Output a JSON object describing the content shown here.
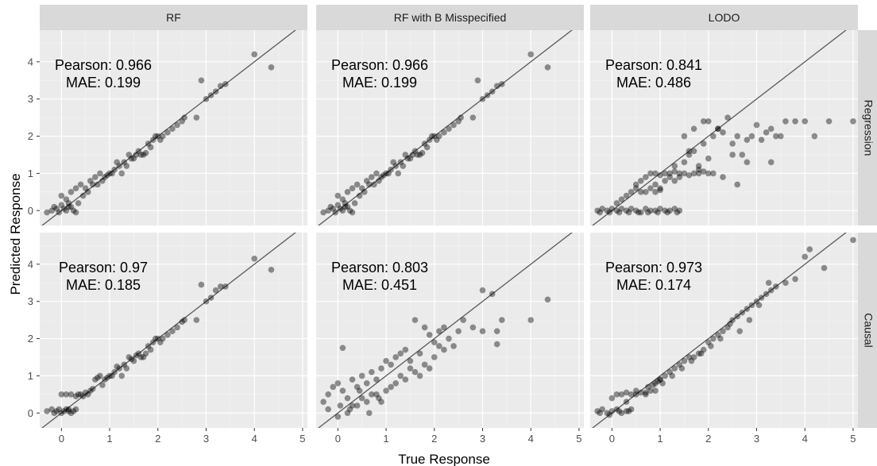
{
  "chart_data": {
    "type": "scatter",
    "xlabel": "True Response",
    "ylabel": "Predicted Response",
    "xlim": [
      -0.45,
      5.1
    ],
    "ylim": [
      -0.4,
      4.85
    ],
    "x_ticks": [
      0,
      1,
      2,
      3,
      4,
      5
    ],
    "y_ticks": [
      0,
      1,
      2,
      3,
      4
    ],
    "grid": true,
    "reference_line": "y = x",
    "columns": [
      "RF",
      "RF with B Misspecified",
      "LODO"
    ],
    "rows": [
      "Regression",
      "Causal"
    ],
    "panels": [
      {
        "column": "RF",
        "row": "Regression",
        "annotation": {
          "pearson": "Pearson: 0.966",
          "mae": "MAE: 0.199"
        },
        "x": [
          -0.3,
          -0.2,
          -0.15,
          -0.1,
          -0.05,
          0.0,
          0.05,
          0.1,
          0.15,
          0.2,
          0.25,
          0.3,
          0.0,
          0.1,
          0.2,
          0.3,
          0.4,
          0.5,
          0.6,
          0.7,
          0.8,
          0.9,
          1.0,
          1.1,
          1.2,
          1.3,
          1.4,
          1.5,
          1.6,
          1.7,
          1.8,
          1.9,
          2.0,
          2.1,
          2.2,
          2.4,
          2.5,
          2.8,
          3.0,
          3.2,
          3.3,
          3.4,
          4.0,
          4.35,
          0.35,
          0.55,
          0.75,
          0.95,
          1.25,
          1.45,
          1.65,
          1.85,
          2.05,
          2.3,
          2.55,
          2.9,
          3.1,
          0.15,
          0.45,
          0.65,
          0.85,
          1.05,
          1.15,
          1.35,
          1.55,
          1.75,
          1.95
        ],
        "y": [
          -0.05,
          0.0,
          0.1,
          0.05,
          -0.05,
          0.15,
          0.05,
          0.0,
          0.2,
          0.1,
          0.0,
          -0.05,
          0.4,
          0.3,
          0.5,
          0.6,
          0.7,
          0.6,
          0.8,
          0.9,
          1.0,
          0.9,
          1.0,
          1.1,
          1.2,
          1.3,
          1.5,
          1.4,
          1.6,
          1.5,
          1.8,
          1.9,
          2.0,
          2.0,
          2.1,
          2.3,
          2.4,
          2.5,
          3.0,
          3.2,
          3.35,
          3.4,
          4.2,
          3.85,
          0.2,
          0.5,
          0.7,
          0.95,
          1.0,
          1.4,
          1.5,
          1.7,
          1.9,
          2.2,
          2.5,
          3.5,
          3.1,
          0.1,
          0.4,
          0.7,
          0.8,
          1.0,
          1.3,
          1.2,
          1.5,
          1.55,
          2.0
        ]
      },
      {
        "column": "RF with B Misspecified",
        "row": "Regression",
        "annotation": {
          "pearson": "Pearson: 0.966",
          "mae": "MAE: 0.199"
        },
        "x": [
          -0.3,
          -0.2,
          -0.15,
          -0.1,
          -0.05,
          0.0,
          0.05,
          0.1,
          0.15,
          0.2,
          0.25,
          0.3,
          0.0,
          0.1,
          0.2,
          0.3,
          0.4,
          0.5,
          0.6,
          0.7,
          0.8,
          0.9,
          1.0,
          1.1,
          1.2,
          1.3,
          1.4,
          1.5,
          1.6,
          1.7,
          1.8,
          1.9,
          2.0,
          2.1,
          2.2,
          2.4,
          2.5,
          2.8,
          3.0,
          3.2,
          3.3,
          3.4,
          4.0,
          4.35,
          0.35,
          0.55,
          0.75,
          0.95,
          1.25,
          1.45,
          1.65,
          1.85,
          2.05,
          2.3,
          2.55,
          2.9,
          3.1,
          0.15,
          0.45,
          0.65,
          0.85,
          1.05,
          1.15,
          1.35,
          1.55,
          1.75,
          1.95
        ],
        "y": [
          -0.05,
          0.0,
          0.1,
          0.05,
          -0.05,
          0.15,
          0.05,
          0.0,
          0.2,
          0.1,
          0.0,
          -0.05,
          0.4,
          0.3,
          0.5,
          0.6,
          0.7,
          0.6,
          0.8,
          0.9,
          1.0,
          0.9,
          1.0,
          1.1,
          1.2,
          1.3,
          1.5,
          1.4,
          1.6,
          1.5,
          1.8,
          1.9,
          2.0,
          2.0,
          2.1,
          2.3,
          2.4,
          2.5,
          3.0,
          3.2,
          3.35,
          3.4,
          4.2,
          3.85,
          0.2,
          0.5,
          0.7,
          0.95,
          1.0,
          1.4,
          1.5,
          1.7,
          1.9,
          2.2,
          2.5,
          3.5,
          3.1,
          0.1,
          0.4,
          0.7,
          0.8,
          1.0,
          1.3,
          1.2,
          1.5,
          1.55,
          2.0
        ]
      },
      {
        "column": "LODO",
        "row": "Regression",
        "annotation": {
          "pearson": "Pearson: 0.841",
          "mae": "MAE: 0.486"
        },
        "x": [
          -0.3,
          -0.2,
          -0.1,
          0.0,
          0.1,
          0.2,
          0.3,
          0.4,
          0.5,
          0.6,
          0.7,
          0.8,
          0.9,
          1.0,
          1.1,
          1.2,
          1.3,
          1.4,
          -0.25,
          -0.05,
          0.15,
          0.35,
          0.55,
          0.75,
          0.95,
          1.15,
          1.35,
          0.1,
          0.2,
          0.3,
          0.4,
          0.5,
          0.6,
          0.7,
          0.8,
          0.9,
          1.0,
          0.5,
          0.6,
          0.7,
          0.8,
          0.9,
          1.0,
          1.1,
          1.2,
          1.3,
          1.4,
          1.5,
          1.6,
          1.7,
          1.8,
          1.9,
          2.0,
          2.1,
          0.9,
          1.0,
          1.1,
          1.2,
          1.3,
          1.4,
          1.5,
          1.6,
          1.7,
          1.8,
          1.9,
          2.0,
          1.5,
          1.7,
          1.9,
          2.1,
          2.3,
          2.5,
          2.7,
          2.9,
          3.1,
          3.3,
          3.5,
          2.0,
          2.2,
          2.4,
          2.6,
          2.8,
          3.0,
          3.2,
          3.4,
          3.6,
          3.8,
          4.0,
          4.2,
          4.5,
          5.0,
          1.3,
          1.6,
          2.2,
          2.5,
          2.8,
          3.3,
          1.8,
          2.3,
          2.6
        ],
        "y": [
          0.0,
          0.05,
          0.0,
          0.05,
          0.0,
          0.05,
          0.0,
          0.05,
          0.0,
          -0.05,
          0.05,
          0.0,
          0.0,
          0.05,
          0.0,
          0.0,
          0.05,
          0.0,
          -0.05,
          -0.05,
          -0.05,
          -0.05,
          -0.05,
          -0.05,
          -0.05,
          -0.05,
          -0.05,
          0.2,
          0.3,
          0.4,
          0.5,
          0.6,
          0.5,
          0.5,
          0.6,
          0.5,
          0.55,
          0.7,
          0.8,
          0.9,
          1.0,
          1.0,
          0.95,
          1.0,
          1.0,
          1.05,
          1.0,
          1.0,
          0.95,
          1.0,
          1.0,
          1.05,
          1.0,
          1.0,
          0.7,
          0.6,
          0.8,
          0.9,
          1.2,
          0.9,
          1.3,
          1.5,
          1.6,
          1.2,
          1.8,
          1.4,
          2.0,
          2.2,
          2.4,
          2.0,
          2.1,
          1.8,
          1.5,
          2.0,
          1.9,
          2.2,
          2.0,
          2.4,
          2.2,
          2.5,
          2.0,
          1.9,
          2.3,
          2.1,
          2.0,
          2.4,
          2.4,
          2.4,
          2.0,
          2.4,
          2.4,
          0.8,
          1.6,
          2.2,
          1.5,
          1.3,
          1.3,
          1.1,
          0.9,
          0.7
        ]
      },
      {
        "column": "RF",
        "row": "Causal",
        "annotation": {
          "pearson": "Pearson: 0.97",
          "mae": "MAE: 0.185"
        },
        "x": [
          -0.3,
          -0.2,
          -0.15,
          -0.1,
          -0.05,
          0.0,
          0.05,
          0.1,
          0.15,
          0.2,
          0.25,
          0.3,
          0.0,
          0.1,
          0.2,
          0.3,
          0.4,
          0.5,
          0.6,
          0.7,
          0.8,
          0.9,
          1.0,
          1.1,
          1.2,
          1.3,
          1.4,
          1.5,
          1.6,
          1.7,
          1.8,
          1.9,
          2.0,
          2.1,
          2.2,
          2.4,
          2.5,
          2.8,
          3.0,
          3.2,
          3.3,
          3.4,
          4.0,
          4.35,
          0.35,
          0.55,
          0.75,
          0.95,
          1.25,
          1.45,
          1.65,
          1.85,
          2.05,
          2.3,
          2.55,
          2.9,
          3.1,
          0.15,
          0.45,
          0.65,
          0.85,
          1.05,
          1.15,
          1.35,
          1.55,
          1.75,
          1.95
        ],
        "y": [
          0.05,
          0.1,
          0.0,
          0.05,
          0.1,
          0.0,
          0.05,
          0.1,
          0.05,
          0.0,
          0.05,
          0.1,
          0.5,
          0.5,
          0.5,
          0.45,
          0.5,
          0.55,
          0.6,
          0.9,
          1.0,
          0.9,
          1.0,
          1.1,
          1.2,
          1.3,
          1.5,
          1.4,
          1.6,
          1.5,
          1.8,
          1.9,
          2.0,
          2.0,
          2.1,
          2.3,
          2.45,
          2.5,
          3.0,
          3.3,
          3.4,
          3.4,
          4.15,
          3.85,
          0.5,
          0.5,
          0.95,
          0.95,
          1.0,
          1.45,
          1.5,
          1.7,
          1.9,
          2.2,
          2.5,
          3.45,
          3.1,
          0.1,
          0.45,
          0.65,
          0.75,
          1.0,
          1.25,
          1.2,
          1.55,
          1.6,
          2.0
        ]
      },
      {
        "column": "RF with B Misspecified",
        "row": "Causal",
        "annotation": {
          "pearson": "Pearson: 0.803",
          "mae": "MAE: 0.451"
        },
        "x": [
          -0.3,
          -0.2,
          -0.1,
          0.0,
          0.1,
          0.2,
          0.3,
          0.4,
          0.5,
          0.6,
          0.7,
          0.8,
          0.9,
          1.0,
          1.1,
          1.2,
          1.3,
          1.4,
          1.5,
          1.6,
          1.7,
          1.8,
          1.9,
          2.0,
          2.1,
          2.2,
          2.3,
          2.5,
          2.6,
          2.8,
          3.0,
          3.2,
          3.3,
          3.4,
          4.0,
          4.35,
          0.0,
          0.2,
          0.4,
          0.6,
          0.8,
          1.0,
          1.2,
          1.4,
          1.6,
          1.8,
          2.0,
          2.2,
          -0.2,
          0.1,
          0.3,
          0.5,
          0.7,
          0.9,
          1.1,
          1.3,
          1.5,
          1.7,
          1.9,
          2.1,
          2.4,
          3.0,
          3.3,
          0.05,
          0.25,
          0.45,
          0.65,
          0.85
        ],
        "y": [
          0.3,
          0.5,
          0.7,
          0.8,
          0.6,
          0.4,
          0.9,
          0.7,
          1.0,
          0.8,
          1.1,
          0.9,
          1.2,
          1.4,
          1.3,
          1.5,
          1.6,
          1.7,
          1.4,
          2.5,
          1.6,
          2.3,
          2.1,
          1.9,
          2.2,
          2.3,
          2.0,
          2.2,
          2.5,
          2.3,
          3.3,
          3.2,
          2.2,
          2.5,
          2.5,
          3.05,
          -0.1,
          0.0,
          0.2,
          0.3,
          0.5,
          0.6,
          0.8,
          0.9,
          1.1,
          1.3,
          1.5,
          1.7,
          0.1,
          1.75,
          0.2,
          0.4,
          0.5,
          0.3,
          0.7,
          1.0,
          1.2,
          1.0,
          1.2,
          1.8,
          1.8,
          2.2,
          1.85,
          0.2,
          0.1,
          0.6,
          0.0,
          0.4
        ]
      },
      {
        "column": "LODO",
        "row": "Causal",
        "annotation": {
          "pearson": "Pearson: 0.973",
          "mae": "MAE: 0.174"
        },
        "x": [
          -0.3,
          -0.2,
          -0.1,
          0.0,
          0.1,
          0.2,
          0.3,
          0.4,
          -0.25,
          -0.05,
          0.15,
          0.35,
          0.0,
          0.1,
          0.2,
          0.3,
          0.4,
          0.5,
          0.6,
          0.7,
          0.8,
          0.9,
          1.0,
          0.3,
          0.5,
          0.7,
          0.9,
          1.0,
          1.1,
          1.2,
          1.3,
          1.4,
          1.5,
          1.6,
          1.7,
          1.8,
          1.9,
          2.0,
          2.1,
          2.2,
          2.3,
          2.4,
          2.5,
          2.6,
          2.7,
          2.8,
          2.9,
          3.0,
          3.1,
          3.2,
          3.3,
          3.4,
          3.6,
          3.8,
          4.0,
          4.1,
          4.4,
          5.0,
          1.05,
          1.25,
          1.45,
          1.65,
          1.85,
          2.05,
          2.25,
          2.45,
          2.65,
          2.85,
          3.05,
          3.25,
          0.75,
          0.85,
          0.95
        ],
        "y": [
          0.05,
          0.1,
          0.0,
          0.05,
          0.1,
          0.0,
          0.05,
          0.1,
          0.0,
          -0.05,
          0.05,
          0.05,
          0.4,
          0.5,
          0.5,
          0.55,
          0.5,
          0.6,
          0.55,
          0.5,
          0.6,
          0.8,
          0.9,
          0.3,
          0.5,
          0.55,
          0.6,
          0.9,
          1.0,
          1.1,
          1.2,
          1.3,
          1.4,
          1.5,
          1.5,
          1.6,
          1.7,
          1.9,
          2.0,
          2.1,
          2.2,
          2.3,
          2.5,
          2.6,
          2.7,
          2.8,
          2.9,
          3.0,
          3.1,
          3.2,
          3.3,
          3.4,
          3.5,
          3.6,
          4.2,
          4.4,
          3.9,
          4.65,
          0.8,
          1.0,
          1.2,
          1.4,
          1.6,
          1.8,
          2.0,
          2.4,
          2.2,
          2.5,
          2.9,
          3.5,
          0.7,
          0.75,
          0.85
        ]
      }
    ]
  }
}
